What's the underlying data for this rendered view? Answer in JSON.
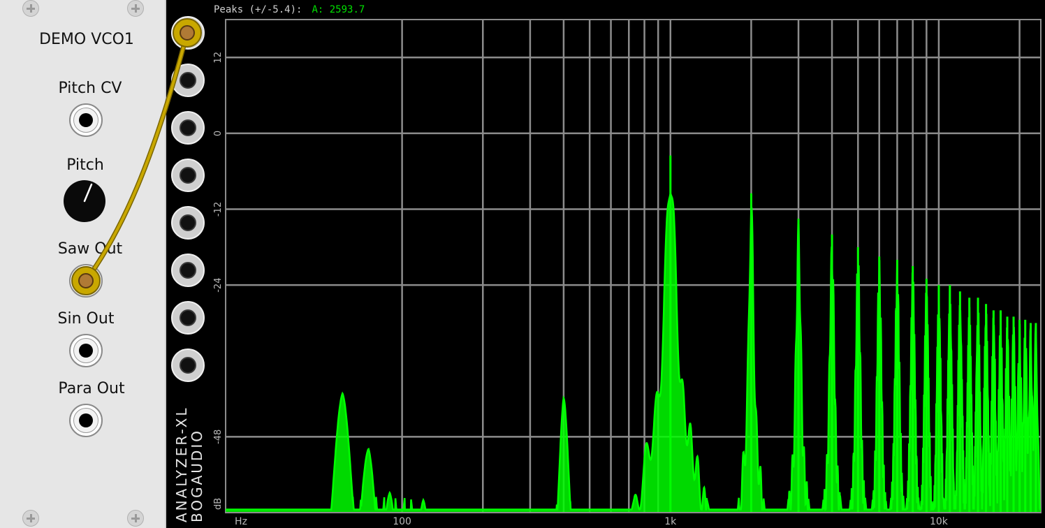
{
  "vco": {
    "title": "DEMO VCO1",
    "labels": {
      "pitch_cv": "Pitch CV",
      "pitch": "Pitch",
      "saw_out": "Saw Out",
      "sin_out": "Sin Out",
      "para_out": "Para Out"
    }
  },
  "analyzer": {
    "brand_line1": "ANALYZER-XL",
    "brand_line2": "BOGAUDIO",
    "readout_label": "Peaks (+/-5.4):",
    "readout_value": "A: 2593.7",
    "trace_color": "#00ff00",
    "grid_color": "#8c8c8c"
  },
  "chart_data": {
    "type": "line",
    "x_scale": "log",
    "xlim": [
      22,
      24000
    ],
    "ylim": [
      -60,
      18
    ],
    "y_ticks": [
      12,
      0,
      -12,
      -24,
      -48
    ],
    "y_tick_labels": [
      "12",
      "0",
      "-12",
      "-24",
      "-48"
    ],
    "y_unit_label": "dB",
    "x_tick_labels": [
      {
        "value": 22,
        "label": "Hz"
      },
      {
        "value": 100,
        "label": "100"
      },
      {
        "value": 1000,
        "label": "1k"
      },
      {
        "value": 10000,
        "label": "10k"
      }
    ],
    "x_grid": [
      100,
      200,
      300,
      400,
      500,
      600,
      700,
      800,
      900,
      1000,
      2000,
      3000,
      4000,
      5000,
      6000,
      7000,
      8000,
      9000,
      10000,
      20000
    ],
    "fundamental_hz": 1000,
    "harmonic_peaks": [
      {
        "x": 1000,
        "y": -3.5
      },
      {
        "x": 2000,
        "y": -9.5
      },
      {
        "x": 3000,
        "y": -13.5
      },
      {
        "x": 4000,
        "y": -16
      },
      {
        "x": 5000,
        "y": -18
      },
      {
        "x": 6000,
        "y": -19.5
      },
      {
        "x": 7000,
        "y": -20
      },
      {
        "x": 8000,
        "y": -21
      },
      {
        "x": 9000,
        "y": -23
      },
      {
        "x": 10000,
        "y": -24
      },
      {
        "x": 11000,
        "y": -24
      },
      {
        "x": 12000,
        "y": -25
      },
      {
        "x": 13000,
        "y": -26
      },
      {
        "x": 14000,
        "y": -26
      },
      {
        "x": 15000,
        "y": -27
      },
      {
        "x": 16000,
        "y": -28
      },
      {
        "x": 17000,
        "y": -28
      },
      {
        "x": 18000,
        "y": -29
      },
      {
        "x": 19000,
        "y": -29
      },
      {
        "x": 20000,
        "y": -29.5
      },
      {
        "x": 21000,
        "y": -29.5
      },
      {
        "x": 22000,
        "y": -30
      },
      {
        "x": 23000,
        "y": -30
      }
    ],
    "low_peaks": [
      {
        "x": 60,
        "y": -41
      },
      {
        "x": 75,
        "y": -47
      },
      {
        "x": 90,
        "y": -51
      },
      {
        "x": 105,
        "y": -55
      },
      {
        "x": 120,
        "y": -58
      },
      {
        "x": 400,
        "y": -36
      }
    ]
  }
}
